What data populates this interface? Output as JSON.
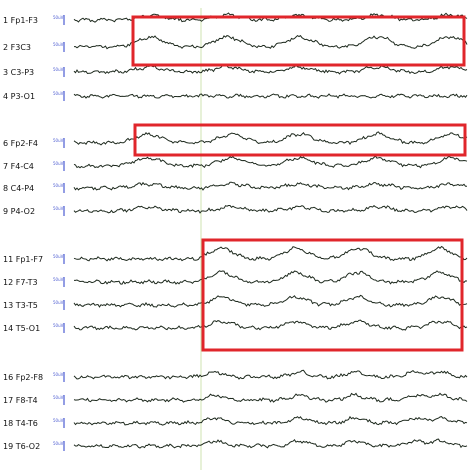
{
  "channels": [
    {
      "num": "1",
      "name": "Fp1-F3"
    },
    {
      "num": "2",
      "name": "F3C3"
    },
    {
      "num": "3",
      "name": "C3-P3"
    },
    {
      "num": "4",
      "name": "P3-O1"
    },
    {
      "num": "6",
      "name": "Fp2-F4"
    },
    {
      "num": "7",
      "name": "F4-C4"
    },
    {
      "num": "8",
      "name": "C4-P4"
    },
    {
      "num": "9",
      "name": "P4-O2"
    },
    {
      "num": "11",
      "name": "Fp1-F7"
    },
    {
      "num": "12",
      "name": "F7-T3"
    },
    {
      "num": "13",
      "name": "T3-T5"
    },
    {
      "num": "14",
      "name": "T5-O1"
    },
    {
      "num": "16",
      "name": "Fp2-F8"
    },
    {
      "num": "17",
      "name": "F8-T4"
    },
    {
      "num": "18",
      "name": "T4-T6"
    },
    {
      "num": "19",
      "name": "T6-O2"
    }
  ],
  "scale_label": "50uV",
  "colors": {
    "highlight": "#e0262b",
    "trace": "#1e2a1e",
    "scale": "#4b5bd1",
    "guide": "#cfe3b0"
  }
}
